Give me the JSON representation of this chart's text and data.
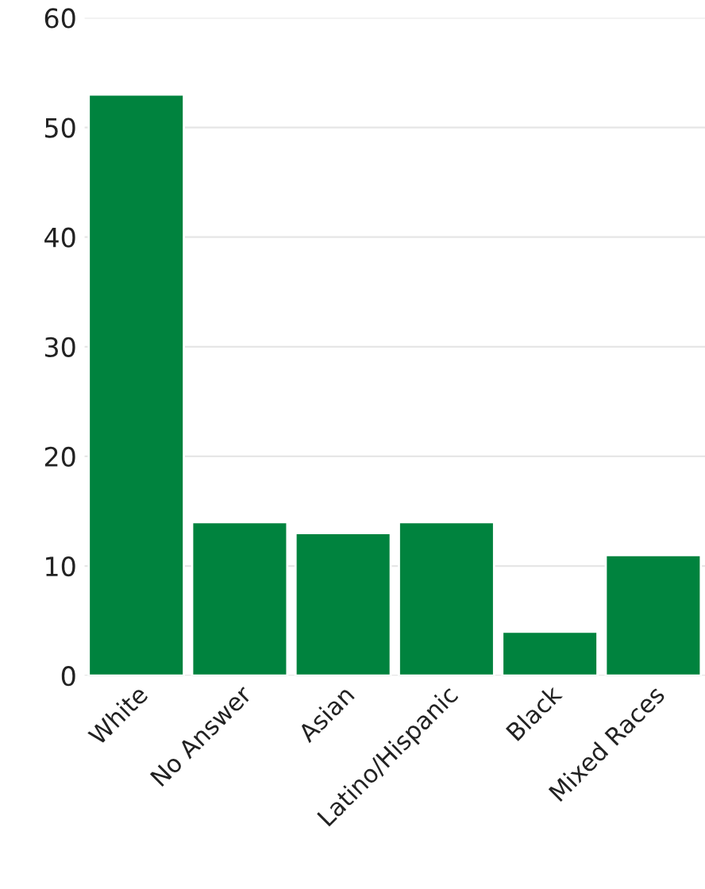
{
  "chart_data": {
    "type": "bar",
    "categories": [
      "White",
      "No Answer",
      "Asian",
      "Latino/Hispanic",
      "Black",
      "Mixed Races"
    ],
    "values": [
      53,
      14,
      13,
      14,
      4,
      11
    ],
    "color": "#00833e",
    "ylim": [
      0,
      60
    ],
    "yticks": [
      0,
      10,
      20,
      30,
      40,
      50,
      60
    ],
    "grid": "y"
  }
}
